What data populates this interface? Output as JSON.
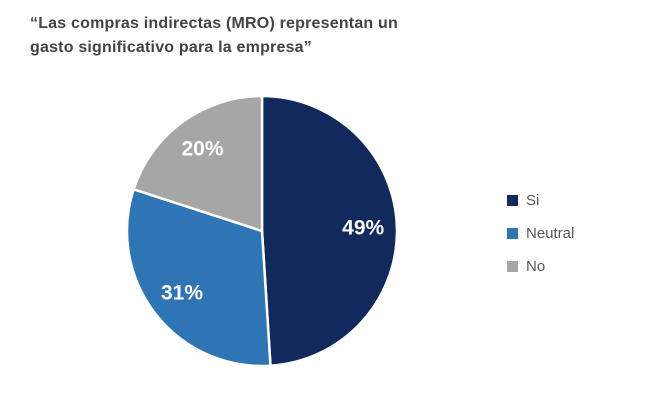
{
  "page": {
    "background_color": "#FFFFFF"
  },
  "title": {
    "lines": [
      "“Las compras indirectas (MRO) representan un",
      "gasto significativo para la empresa”"
    ],
    "full_text": "“Las compras indirectas (MRO) representan un gasto significativo para la empresa”",
    "color": "#444444"
  },
  "legend": {
    "position": "right",
    "text_color": "#595959",
    "items": [
      {
        "label": "Si",
        "color": "#12295E"
      },
      {
        "label": "Neutral",
        "color": "#2E75B5"
      },
      {
        "label": "No",
        "color": "#A6A6A6"
      }
    ]
  },
  "chart_data": {
    "type": "pie",
    "title": "“Las compras indirectas (MRO) representan un gasto significativo para la empresa”",
    "slices": [
      {
        "label": "Si",
        "value": 49,
        "data_label": "49%",
        "color": "#12295E"
      },
      {
        "label": "Neutral",
        "value": 31,
        "data_label": "31%",
        "color": "#2E75B5"
      },
      {
        "label": "No",
        "value": 20,
        "data_label": "20%",
        "color": "#A6A6A6"
      }
    ],
    "start_angle_deg": 0,
    "direction": "clockwise",
    "data_labels": "percent-inside",
    "data_label_color": "#FFFFFF",
    "slice_border_color": "#FFFFFF",
    "legend_position": "right",
    "grid": false
  }
}
